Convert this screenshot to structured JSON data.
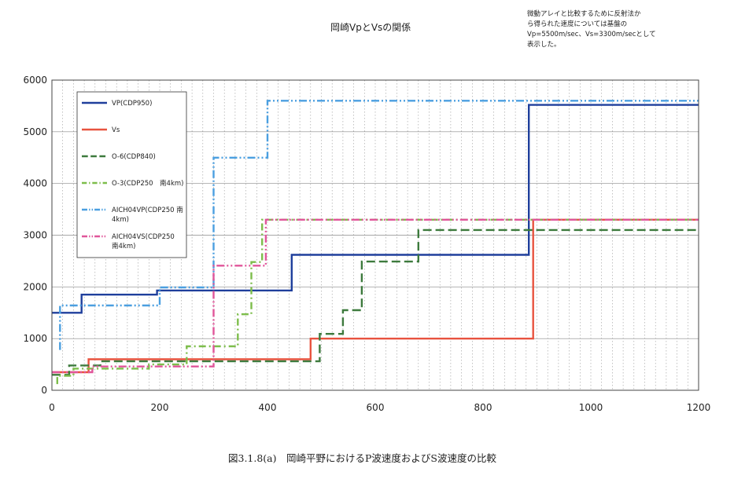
{
  "header": {
    "title": "岡崎VpとVsの関係",
    "note": [
      "微動アレイと比較するために反射法か",
      "ら得られた速度については基盤の",
      "Vp=5500m/sec、Vs=3300m/secとして",
      "表示した。"
    ]
  },
  "caption": "図3.1.8(a)　岡崎平野におけるP波速度およびS波速度の比較",
  "chart_data": {
    "type": "line",
    "xlim": [
      0,
      1200
    ],
    "ylim": [
      0,
      6000
    ],
    "x_ticks": [
      0,
      200,
      400,
      600,
      800,
      1000,
      1200
    ],
    "y_ticks": [
      0,
      1000,
      2000,
      3000,
      4000,
      5000,
      6000
    ],
    "grid": true,
    "legend_position": "top-left",
    "series": [
      {
        "name": "VP(CDP950)",
        "legend_lines": [
          "VP(CDP950)"
        ],
        "color": "#1f3f9c",
        "dash": "solid",
        "points": [
          [
            0,
            1500
          ],
          [
            55,
            1500
          ],
          [
            55,
            1850
          ],
          [
            195,
            1850
          ],
          [
            195,
            1930
          ],
          [
            445,
            1930
          ],
          [
            445,
            2620
          ],
          [
            885,
            2620
          ],
          [
            885,
            5520
          ],
          [
            1200,
            5520
          ]
        ]
      },
      {
        "name": "Vs",
        "legend_lines": [
          "Vs"
        ],
        "color": "#e8533f",
        "dash": "solid",
        "points": [
          [
            0,
            350
          ],
          [
            68,
            350
          ],
          [
            68,
            600
          ],
          [
            480,
            600
          ],
          [
            480,
            1000
          ],
          [
            893,
            1000
          ],
          [
            893,
            3300
          ],
          [
            1200,
            3300
          ]
        ]
      },
      {
        "name": "O-6(CDP840)",
        "legend_lines": [
          "O-6(CDP840)"
        ],
        "color": "#3d7a3d",
        "dash": "long-dash",
        "points": [
          [
            0,
            300
          ],
          [
            32,
            300
          ],
          [
            32,
            480
          ],
          [
            90,
            480
          ],
          [
            90,
            560
          ],
          [
            497,
            560
          ],
          [
            497,
            1090
          ],
          [
            540,
            1090
          ],
          [
            540,
            1550
          ],
          [
            575,
            1550
          ],
          [
            575,
            2490
          ],
          [
            680,
            2490
          ],
          [
            680,
            3100
          ],
          [
            1200,
            3100
          ]
        ]
      },
      {
        "name": "O-3(CDP250 南4km)",
        "legend_lines": [
          "O-3(CDP250　南4km)"
        ],
        "color": "#7dbd4b",
        "dash": "dash-dot",
        "points": [
          [
            10,
            120
          ],
          [
            10,
            280
          ],
          [
            40,
            280
          ],
          [
            40,
            420
          ],
          [
            180,
            420
          ],
          [
            180,
            500
          ],
          [
            250,
            500
          ],
          [
            250,
            850
          ],
          [
            345,
            850
          ],
          [
            345,
            1470
          ],
          [
            370,
            1470
          ],
          [
            370,
            2480
          ],
          [
            390,
            2480
          ],
          [
            390,
            3300
          ],
          [
            1200,
            3300
          ]
        ]
      },
      {
        "name": "AICH04VP(CDP250 南4km)",
        "legend_lines": [
          "AICH04VP(CDP250 南",
          "4km)"
        ],
        "color": "#4b9fe0",
        "dash": "dash-dot-dot",
        "points": [
          [
            15,
            780
          ],
          [
            15,
            1640
          ],
          [
            200,
            1640
          ],
          [
            200,
            1990
          ],
          [
            300,
            1990
          ],
          [
            300,
            4500
          ],
          [
            400,
            4500
          ],
          [
            400,
            5600
          ],
          [
            1200,
            5600
          ]
        ]
      },
      {
        "name": "AICH04VS(CDP250 南4km)",
        "legend_lines": [
          "AICH04VS(CDP250",
          "南4km)"
        ],
        "color": "#e0569a",
        "dash": "dash-dot-dot",
        "points": [
          [
            0,
            350
          ],
          [
            75,
            350
          ],
          [
            75,
            460
          ],
          [
            300,
            460
          ],
          [
            300,
            2410
          ],
          [
            397,
            2410
          ],
          [
            397,
            3300
          ],
          [
            1200,
            3300
          ]
        ]
      }
    ]
  }
}
